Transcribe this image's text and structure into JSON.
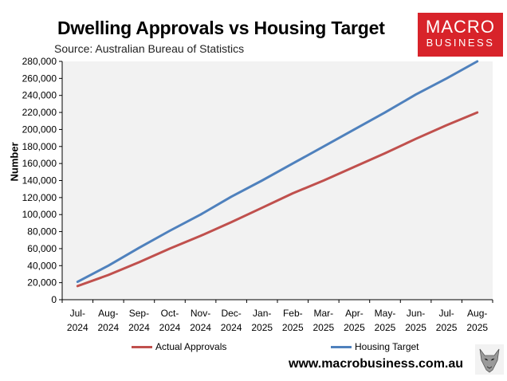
{
  "header": {
    "title": "Dwelling Approvals vs Housing Target",
    "source": "Source: Australian Bureau of Statistics"
  },
  "logo": {
    "line1": "MACRO",
    "line2": "BUSINESS"
  },
  "footer": {
    "url": "www.macrobusiness.com.au"
  },
  "colors": {
    "actual": "#c0504d",
    "target": "#4f81bd",
    "logo_bg": "#d8232a"
  },
  "chart_data": {
    "type": "line",
    "title": "Dwelling Approvals vs Housing Target",
    "ylabel": "Number",
    "xlabel": "",
    "ylim": [
      0,
      280000
    ],
    "ytick_step": 20000,
    "ytick_labels": [
      "0",
      "20,000",
      "40,000",
      "60,000",
      "80,000",
      "100,000",
      "120,000",
      "140,000",
      "160,000",
      "180,000",
      "200,000",
      "220,000",
      "240,000",
      "260,000",
      "280,000"
    ],
    "categories": [
      [
        "Jul-",
        "2024"
      ],
      [
        "Aug-",
        "2024"
      ],
      [
        "Sep-",
        "2024"
      ],
      [
        "Oct-",
        "2024"
      ],
      [
        "Nov-",
        "2024"
      ],
      [
        "Dec-",
        "2024"
      ],
      [
        "Jan-",
        "2025"
      ],
      [
        "Feb-",
        "2025"
      ],
      [
        "Mar-",
        "2025"
      ],
      [
        "Apr-",
        "2025"
      ],
      [
        "May-",
        "2025"
      ],
      [
        "Jun-",
        "2025"
      ],
      [
        "Jul-",
        "2025"
      ],
      [
        "Aug-",
        "2025"
      ]
    ],
    "series": [
      {
        "name": "Actual Approvals",
        "color": "#c0504d",
        "values": [
          16000,
          29000,
          44000,
          60000,
          75000,
          91000,
          108000,
          125000,
          140000,
          156000,
          172000,
          189000,
          205000,
          220000
        ]
      },
      {
        "name": "Housing Target",
        "color": "#4f81bd",
        "values": [
          21000,
          40000,
          61000,
          81000,
          100000,
          121000,
          140000,
          160000,
          180000,
          200000,
          220000,
          241000,
          260000,
          280000
        ]
      }
    ]
  }
}
